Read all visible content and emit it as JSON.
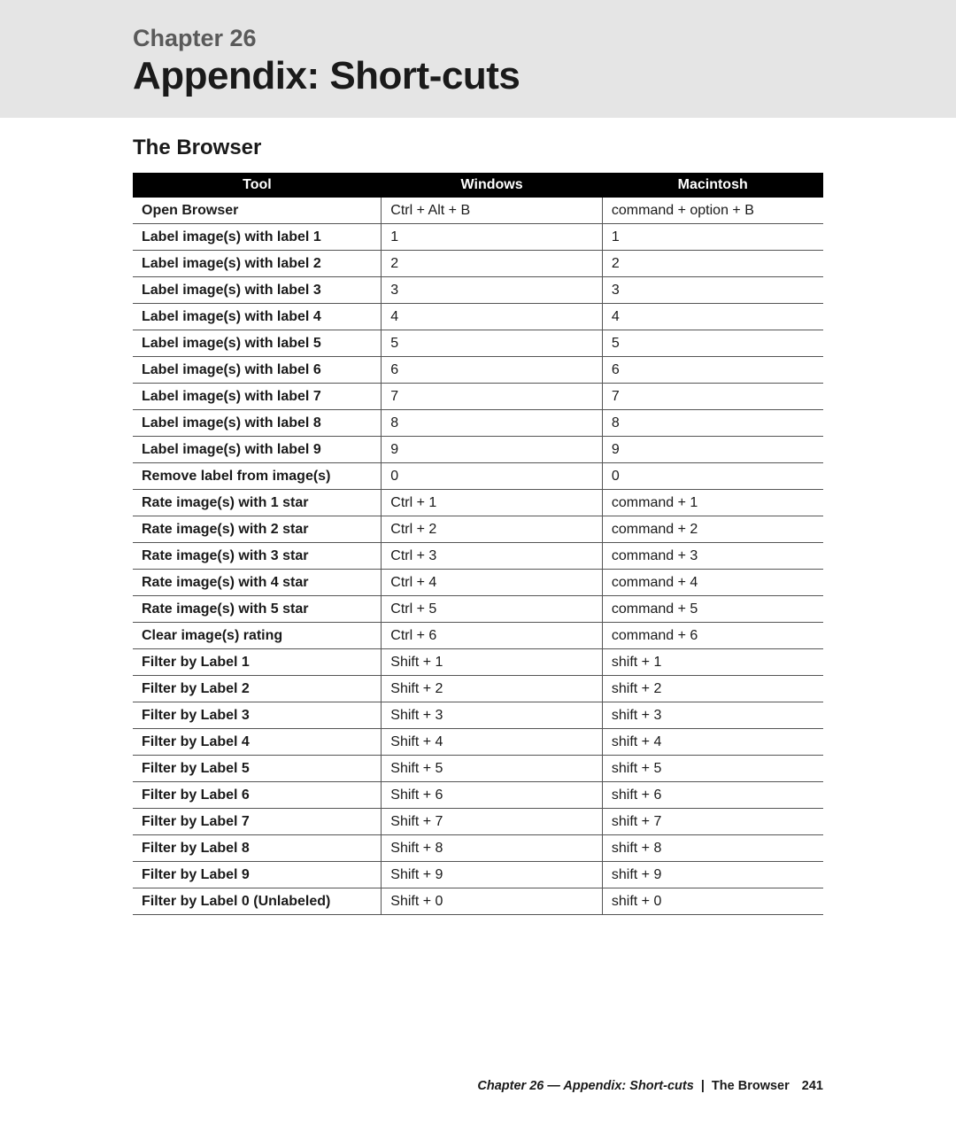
{
  "banner": {
    "chapter_label": "Chapter 26",
    "title": "Appendix: Short-cuts"
  },
  "section": {
    "heading": "The Browser"
  },
  "table": {
    "columns": [
      "Tool",
      "Windows",
      "Macintosh"
    ],
    "groups": [
      {
        "rows": [
          {
            "tool": "Open Browser",
            "win": "Ctrl + Alt + B",
            "mac": "command + option + B"
          },
          {
            "tool": "Label image(s) with label 1",
            "win": "1",
            "mac": "1"
          },
          {
            "tool": "Label image(s) with label 2",
            "win": "2",
            "mac": "2"
          },
          {
            "tool": "Label image(s) with label 3",
            "win": "3",
            "mac": "3"
          },
          {
            "tool": "Label image(s) with label 4",
            "win": "4",
            "mac": "4"
          },
          {
            "tool": "Label image(s) with label 5",
            "win": "5",
            "mac": "5"
          },
          {
            "tool": "Label image(s) with label 6",
            "win": "6",
            "mac": "6"
          },
          {
            "tool": "Label image(s) with label 7",
            "win": "7",
            "mac": "7"
          },
          {
            "tool": "Label image(s) with label 8",
            "win": "8",
            "mac": "8"
          },
          {
            "tool": "Label image(s) with label 9",
            "win": "9",
            "mac": "9"
          },
          {
            "tool": "Remove label from image(s)",
            "win": "0",
            "mac": "0"
          }
        ]
      },
      {
        "rows": [
          {
            "tool": "Rate image(s) with 1 star",
            "win": "Ctrl + 1",
            "mac": "command + 1"
          },
          {
            "tool": "Rate image(s) with 2 star",
            "win": "Ctrl + 2",
            "mac": "command + 2"
          },
          {
            "tool": "Rate image(s) with 3 star",
            "win": "Ctrl + 3",
            "mac": "command + 3"
          },
          {
            "tool": "Rate image(s) with 4 star",
            "win": "Ctrl + 4",
            "mac": "command + 4"
          },
          {
            "tool": "Rate image(s) with 5 star",
            "win": "Ctrl + 5",
            "mac": "command + 5"
          },
          {
            "tool": "Clear image(s) rating",
            "win": "Ctrl + 6",
            "mac": "command + 6"
          }
        ]
      },
      {
        "rows": [
          {
            "tool": "Filter by Label 1",
            "win": "Shift + 1",
            "mac": "shift + 1"
          },
          {
            "tool": "Filter by Label 2",
            "win": "Shift + 2",
            "mac": "shift + 2"
          },
          {
            "tool": "Filter by Label 3",
            "win": "Shift + 3",
            "mac": "shift + 3"
          },
          {
            "tool": "Filter by Label 4",
            "win": "Shift + 4",
            "mac": "shift + 4"
          },
          {
            "tool": "Filter by Label 5",
            "win": "Shift + 5",
            "mac": "shift + 5"
          },
          {
            "tool": "Filter by Label 6",
            "win": "Shift + 6",
            "mac": "shift + 6"
          },
          {
            "tool": "Filter by Label 7",
            "win": "Shift + 7",
            "mac": "shift + 7"
          },
          {
            "tool": "Filter by Label 8",
            "win": "Shift + 8",
            "mac": "shift + 8"
          },
          {
            "tool": "Filter by Label 9",
            "win": "Shift + 9",
            "mac": "shift + 9"
          },
          {
            "tool": "Filter by Label 0 (Unlabeled)",
            "win": "Shift + 0",
            "mac": "shift + 0"
          }
        ]
      }
    ]
  },
  "footer": {
    "chapter_ref": "Chapter 26 — Appendix: Short-cuts",
    "section_ref": "The Browser",
    "page_number": "241"
  },
  "colors": {
    "banner_bg": "#e5e5e5",
    "header_bg": "#000000",
    "header_fg": "#ffffff",
    "row_border": "#555555",
    "group_border": "#000000"
  }
}
